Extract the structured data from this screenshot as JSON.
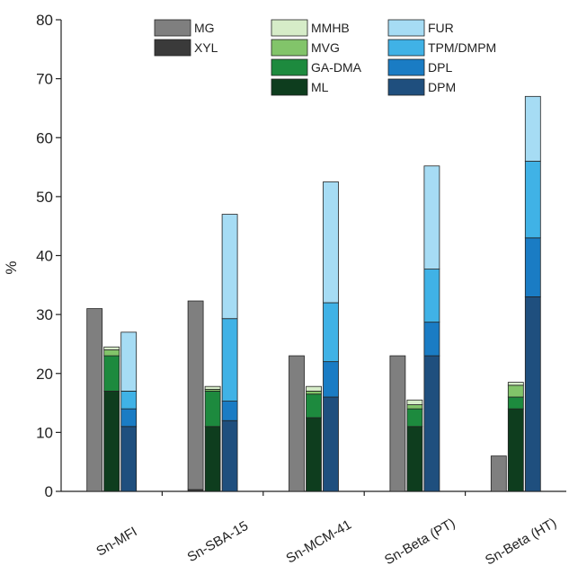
{
  "chart_data": {
    "type": "bar",
    "stacked": true,
    "title": "",
    "xlabel": "",
    "ylabel": "%",
    "ylim": [
      0,
      80
    ],
    "yticks": [
      0,
      10,
      20,
      30,
      40,
      50,
      60,
      70,
      80
    ],
    "grid": false,
    "legend_position": "top",
    "categories": [
      "Sn-MFI",
      "Sn-SBA-15",
      "Sn-MCM-41",
      "Sn-Beta (PT)",
      "Sn-Beta (HT)"
    ],
    "stack_groups": [
      {
        "stack": "MG/XYL",
        "components": [
          {
            "name": "XYL",
            "color": "#3a3a3a",
            "values": [
              0,
              0.3,
              0,
              0,
              0
            ]
          },
          {
            "name": "MG",
            "color": "#7f7f7f",
            "values": [
              31,
              32,
              23,
              23,
              6
            ]
          }
        ]
      },
      {
        "stack": "ML/GA-DMA/MVG/MMHB",
        "components": [
          {
            "name": "ML",
            "color": "#0e3d1e",
            "values": [
              17,
              11,
              12.5,
              11,
              14
            ]
          },
          {
            "name": "GA-DMA",
            "color": "#1d8a3e",
            "values": [
              6,
              6,
              4,
              3,
              2
            ]
          },
          {
            "name": "MVG",
            "color": "#82c46a",
            "values": [
              1,
              0.3,
              0.5,
              0.7,
              2
            ]
          },
          {
            "name": "MMHB",
            "color": "#d6ecc8",
            "values": [
              0.5,
              0.5,
              0.8,
              0.8,
              0.5
            ]
          }
        ]
      },
      {
        "stack": "DPM/DPL/TPM-DMPM/FUR",
        "components": [
          {
            "name": "DPM",
            "color": "#1f4f7e",
            "values": [
              11,
              12,
              16,
              23,
              33
            ]
          },
          {
            "name": "DPL",
            "color": "#1a7cc4",
            "values": [
              3,
              3.3,
              6,
              5.7,
              10
            ]
          },
          {
            "name": "TPM/DMPM",
            "color": "#40b2e6",
            "values": [
              3,
              14,
              10,
              9,
              13
            ]
          },
          {
            "name": "FUR",
            "color": "#a6dcf4",
            "values": [
              10,
              17.7,
              20.5,
              17.5,
              11
            ]
          }
        ]
      }
    ],
    "legend": [
      {
        "label": "MG",
        "color": "#7f7f7f"
      },
      {
        "label": "XYL",
        "color": "#3a3a3a"
      },
      {
        "label": "MMHB",
        "color": "#d6ecc8"
      },
      {
        "label": "MVG",
        "color": "#82c46a"
      },
      {
        "label": "GA-DMA",
        "color": "#1d8a3e"
      },
      {
        "label": "ML",
        "color": "#0e3d1e"
      },
      {
        "label": "FUR",
        "color": "#a6dcf4"
      },
      {
        "label": "TPM/DMPM",
        "color": "#40b2e6"
      },
      {
        "label": "DPL",
        "color": "#1a7cc4"
      },
      {
        "label": "DPM",
        "color": "#1f4f7e"
      }
    ]
  }
}
